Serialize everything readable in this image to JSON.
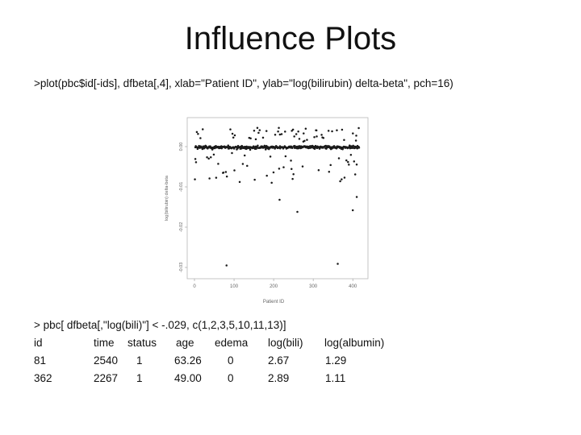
{
  "slide": {
    "title": "Influence Plots",
    "code_line": ">plot(pbc$id[-ids], dfbeta[,4], xlab=\"Patient ID\", ylab=\"log(bilirubin) delta-beta\", pch=16)",
    "query_line": "> pbc[ dfbeta[,\"log(bili)\"] < -.029, c(1,2,3,5,10,11,13)]"
  },
  "table": {
    "headers": [
      "id",
      "time",
      "status",
      "age",
      "edema",
      "log(bili)",
      "log(albumin)"
    ],
    "rows": [
      [
        "81",
        "2540",
        "1",
        "63.26",
        "0",
        "2.67",
        "1.29"
      ],
      [
        "362",
        "2267",
        "1",
        "49.00",
        "0",
        "2.89",
        "1.11"
      ]
    ]
  },
  "chart_data": {
    "type": "scatter",
    "xlabel": "Patient ID",
    "ylabel": "log(bilirubin) delta-beta",
    "xlim": [
      0,
      420
    ],
    "ylim": [
      -0.032,
      0.006
    ],
    "x_ticks": [
      "0",
      "100",
      "200",
      "300",
      "400"
    ],
    "y_ticks": [
      "0.00",
      "-0.01",
      "-0.02",
      "-0.03"
    ],
    "marker": "filled-circle",
    "grid": false,
    "outliers": [
      {
        "x": 81,
        "y": -0.0295
      },
      {
        "x": 362,
        "y": -0.0291
      },
      {
        "x": 260,
        "y": -0.0162
      },
      {
        "x": 400,
        "y": -0.0158
      },
      {
        "x": 215,
        "y": -0.0132
      },
      {
        "x": 410,
        "y": -0.0125
      }
    ]
  }
}
